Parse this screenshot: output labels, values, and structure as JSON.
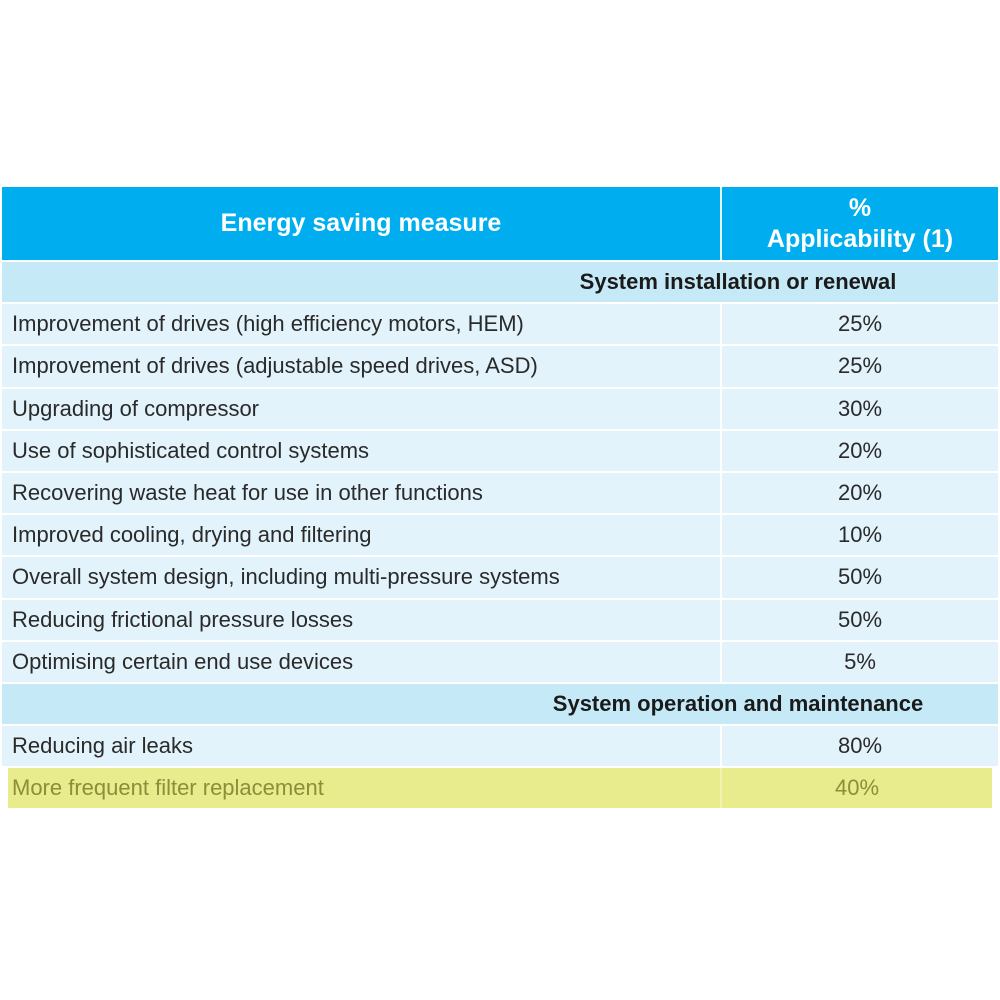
{
  "header": {
    "measure": "Energy saving measure",
    "applicability_line1": "%",
    "applicability_line2": "Applicability (1)"
  },
  "sections": [
    {
      "title": "System installation or renewal",
      "rows": [
        {
          "measure": "Improvement of drives (high efficiency motors, HEM)",
          "value": "25%"
        },
        {
          "measure": "Improvement of drives (adjustable speed drives, ASD)",
          "value": "25%"
        },
        {
          "measure": "Upgrading of compressor",
          "value": "30%"
        },
        {
          "measure": "Use of sophisticated control systems",
          "value": "20%"
        },
        {
          "measure": "Recovering waste heat for use in other functions",
          "value": "20%"
        },
        {
          "measure": "Improved cooling, drying and filtering",
          "value": "10%"
        },
        {
          "measure": "Overall system design, including multi-pressure systems",
          "value": "50%"
        },
        {
          "measure": "Reducing frictional pressure losses",
          "value": "50%"
        },
        {
          "measure": "Optimising certain end use devices",
          "value": "5%"
        }
      ]
    },
    {
      "title": "System operation and maintenance",
      "rows": [
        {
          "measure": "Reducing air leaks",
          "value": "80%"
        },
        {
          "measure": "More frequent filter replacement",
          "value": "40%",
          "highlighted": true
        }
      ]
    }
  ],
  "colors": {
    "header": "#00aeef",
    "section": "#c6e9f8",
    "row": "#e2f3fb",
    "highlight": "#e8ec8c"
  }
}
